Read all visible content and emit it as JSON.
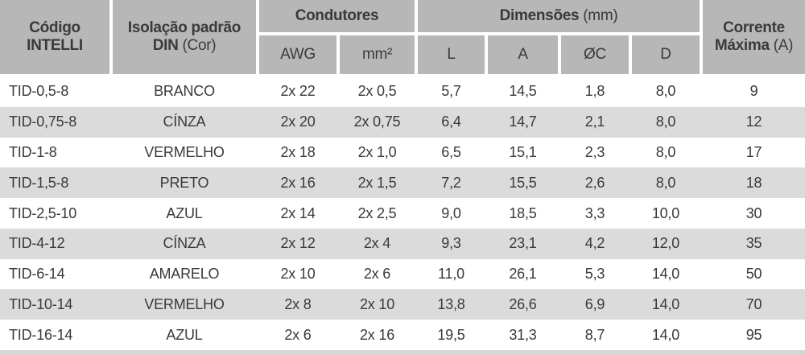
{
  "table": {
    "header": {
      "code": {
        "line1": "Código",
        "line2": "INTELLI"
      },
      "insulation": {
        "line1": "Isolação padrão",
        "line2_bold": "DIN",
        "line2_normal": "(Cor)"
      },
      "conductors": {
        "label": "Condutores",
        "sub": [
          "AWG",
          "mm²"
        ]
      },
      "dimensions": {
        "label_bold": "Dimensões",
        "label_normal": "(mm)",
        "sub": [
          "L",
          "A",
          "ØC",
          "D"
        ]
      },
      "current": {
        "line1": "Corrente",
        "line2_bold": "Máxima",
        "line2_normal": "(A)"
      }
    },
    "rows": [
      {
        "code": "TID-0,5-8",
        "color": "BRANCO",
        "awg": "2x 22",
        "mm2": "2x 0,5",
        "l": "5,7",
        "a": "14,5",
        "oc": "1,8",
        "d": "8,0",
        "current": "9"
      },
      {
        "code": "TID-0,75-8",
        "color": "CÍNZA",
        "awg": "2x 20",
        "mm2": "2x 0,75",
        "l": "6,4",
        "a": "14,7",
        "oc": "2,1",
        "d": "8,0",
        "current": "12"
      },
      {
        "code": "TID-1-8",
        "color": "VERMELHO",
        "awg": "2x 18",
        "mm2": "2x 1,0",
        "l": "6,5",
        "a": "15,1",
        "oc": "2,3",
        "d": "8,0",
        "current": "17"
      },
      {
        "code": "TID-1,5-8",
        "color": "PRETO",
        "awg": "2x 16",
        "mm2": "2x 1,5",
        "l": "7,2",
        "a": "15,5",
        "oc": "2,6",
        "d": "8,0",
        "current": "18"
      },
      {
        "code": "TID-2,5-10",
        "color": "AZUL",
        "awg": "2x 14",
        "mm2": "2x 2,5",
        "l": "9,0",
        "a": "18,5",
        "oc": "3,3",
        "d": "10,0",
        "current": "30"
      },
      {
        "code": "TID-4-12",
        "color": "CÍNZA",
        "awg": "2x 12",
        "mm2": "2x 4",
        "l": "9,3",
        "a": "23,1",
        "oc": "4,2",
        "d": "12,0",
        "current": "35"
      },
      {
        "code": "TID-6-14",
        "color": "AMARELO",
        "awg": "2x 10",
        "mm2": "2x 6",
        "l": "11,0",
        "a": "26,1",
        "oc": "5,3",
        "d": "14,0",
        "current": "50"
      },
      {
        "code": "TID-10-14",
        "color": "VERMELHO",
        "awg": "2x 8",
        "mm2": "2x 10",
        "l": "13,8",
        "a": "26,6",
        "oc": "6,9",
        "d": "14,0",
        "current": "70"
      },
      {
        "code": "TID-16-14",
        "color": "AZUL",
        "awg": "2x 6",
        "mm2": "2x 16",
        "l": "19,5",
        "a": "31,3",
        "oc": "8,7",
        "d": "14,0",
        "current": "95"
      }
    ]
  },
  "colors": {
    "header_bg": "#b7b7b7",
    "stripe_bg": "#dbdbdb",
    "text": "#3a3a3a",
    "bottom_bg": "#d6d6d6"
  }
}
